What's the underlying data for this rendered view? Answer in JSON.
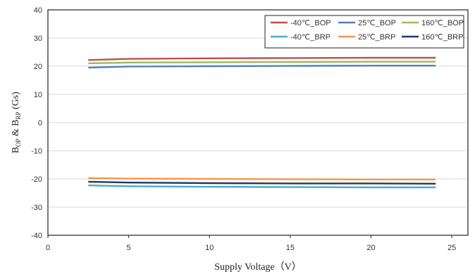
{
  "chart_data": {
    "type": "line",
    "xlabel": "Supply Voltage（V）",
    "ylabel": "B_OP & B_RP (Gs)",
    "ylabel_parts": {
      "b1": "B",
      "s1": "OP",
      "mid": " & B",
      "s2": "RP",
      "end": " (Gs)"
    },
    "xlim": [
      0,
      26
    ],
    "ylim": [
      -40,
      40
    ],
    "x_ticks": [
      0,
      5,
      10,
      15,
      20,
      25
    ],
    "y_ticks": [
      40,
      30,
      20,
      10,
      0,
      -10,
      -20,
      -30,
      -40
    ],
    "grid": true,
    "legend_position": "top-right",
    "x": [
      2.5,
      5,
      10,
      15,
      20,
      24
    ],
    "series": [
      {
        "name": "-40℃_BOP",
        "color": "#c0504d",
        "values": [
          22.2,
          22.6,
          22.8,
          22.9,
          23.0,
          23.0
        ]
      },
      {
        "name": "25℃_BOP",
        "color": "#4f81bd",
        "values": [
          19.5,
          19.9,
          20.0,
          20.1,
          20.2,
          20.2
        ]
      },
      {
        "name": "160℃_BOP",
        "color": "#9bbb59",
        "values": [
          21.0,
          21.3,
          21.4,
          21.5,
          21.6,
          21.6
        ]
      },
      {
        "name": "-40℃_BRP",
        "color": "#4bacc6",
        "values": [
          -22.3,
          -22.6,
          -22.8,
          -22.9,
          -23.0,
          -23.0
        ]
      },
      {
        "name": "25℃_BRP",
        "color": "#f79646",
        "values": [
          -19.7,
          -19.9,
          -20.0,
          -20.1,
          -20.2,
          -20.2
        ]
      },
      {
        "name": "160℃_BRP",
        "color": "#1f3864",
        "values": [
          -21.0,
          -21.3,
          -21.5,
          -21.6,
          -21.6,
          -21.7
        ]
      }
    ]
  }
}
